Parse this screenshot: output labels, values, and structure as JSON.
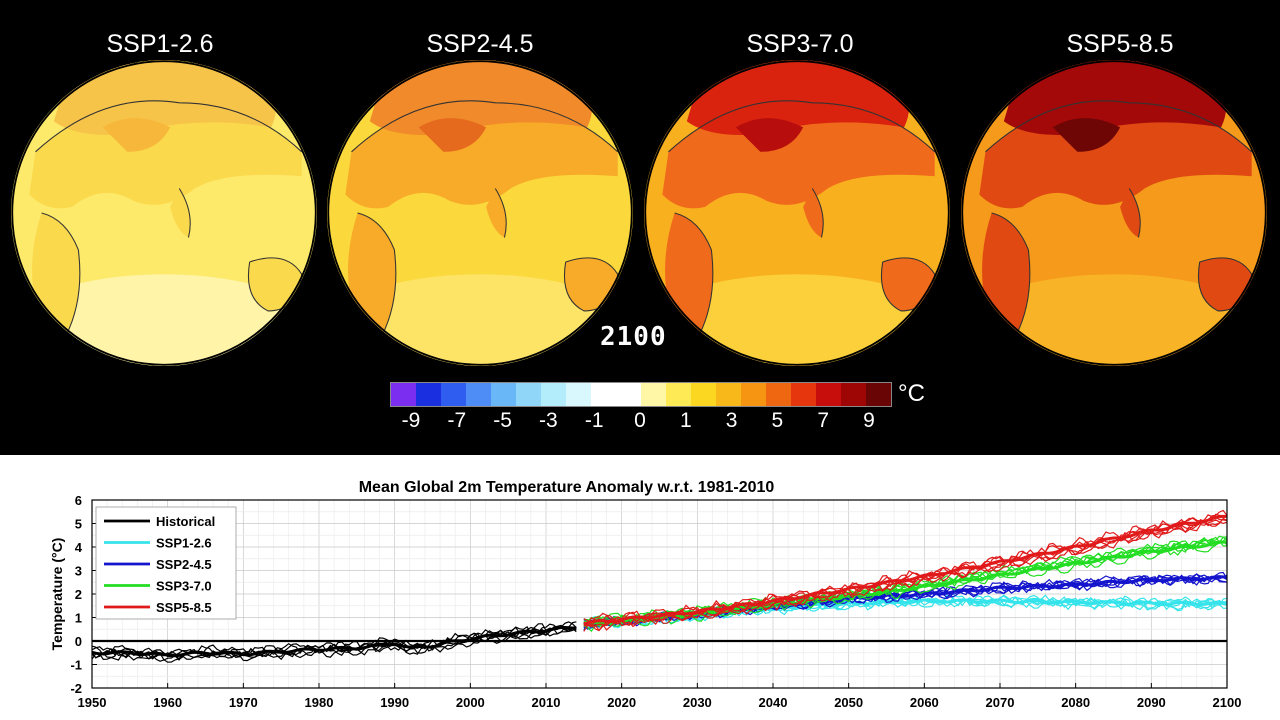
{
  "globes": {
    "year_label": "2100",
    "scenarios": [
      {
        "title": "SSP1-2.6",
        "base": "#fde96a",
        "south": "#fff4a8",
        "land": "#fbd94c",
        "north": "#f7c44a",
        "hot": "#f6b73a"
      },
      {
        "title": "SSP2-4.5",
        "base": "#fbd83c",
        "south": "#fde467",
        "land": "#f8ab28",
        "north": "#f08a2a",
        "hot": "#e66a1d"
      },
      {
        "title": "SSP3-7.0",
        "base": "#f9b01f",
        "south": "#fbd03b",
        "land": "#f06a1b",
        "north": "#d9230f",
        "hot": "#b80d0d"
      },
      {
        "title": "SSP5-8.5",
        "base": "#f59a1a",
        "south": "#f9b326",
        "land": "#e04a12",
        "north": "#a30909",
        "hot": "#6e0606"
      }
    ]
  },
  "colorbar": {
    "unit": "°C",
    "colors": [
      "#7b2ef0",
      "#1a2fe0",
      "#2f5df0",
      "#4d8df5",
      "#6ab7f7",
      "#8fd6f9",
      "#b3ecfb",
      "#d8f8fd",
      "#ffffff",
      "#ffffff",
      "#fff7a6",
      "#fdea55",
      "#fbd721",
      "#f9b81a",
      "#f69512",
      "#f06712",
      "#e5360e",
      "#c80d0d",
      "#9e0606",
      "#6a0505"
    ],
    "tick_labels": [
      "-9",
      "-7",
      "-5",
      "-3",
      "-1",
      "0",
      "1",
      "3",
      "5",
      "7",
      "9"
    ]
  },
  "chart_data": {
    "type": "line",
    "title": "Mean Global 2m Temperature Anomaly w.r.t. 1981-2010",
    "xlabel": "",
    "ylabel": "Temperature (°C)",
    "xlim": [
      1950,
      2100
    ],
    "ylim": [
      -2,
      6
    ],
    "xticks": [
      1950,
      1960,
      1970,
      1980,
      1990,
      2000,
      2010,
      2020,
      2030,
      2040,
      2050,
      2060,
      2070,
      2080,
      2090,
      2100
    ],
    "yticks": [
      -2,
      -1,
      0,
      1,
      2,
      3,
      4,
      5,
      6
    ],
    "grid": true,
    "legend_position": "top-left",
    "series": [
      {
        "name": "Historical",
        "color": "#000000",
        "x": [
          1950,
          1955,
          1960,
          1965,
          1970,
          1975,
          1980,
          1985,
          1990,
          1992,
          1995,
          2000,
          2005,
          2010,
          2014
        ],
        "y": [
          -0.5,
          -0.5,
          -0.6,
          -0.5,
          -0.55,
          -0.45,
          -0.35,
          -0.3,
          -0.1,
          -0.3,
          -0.2,
          0.1,
          0.3,
          0.45,
          0.6
        ],
        "members": 6
      },
      {
        "name": "SSP1-2.6",
        "color": "#35e4ea",
        "x": [
          2015,
          2030,
          2040,
          2050,
          2060,
          2070,
          2080,
          2090,
          2100
        ],
        "y": [
          0.7,
          1.1,
          1.4,
          1.6,
          1.7,
          1.7,
          1.65,
          1.6,
          1.6
        ],
        "members": 6
      },
      {
        "name": "SSP2-4.5",
        "color": "#1414cc",
        "x": [
          2015,
          2030,
          2040,
          2050,
          2060,
          2070,
          2080,
          2090,
          2100
        ],
        "y": [
          0.7,
          1.15,
          1.5,
          1.8,
          2.0,
          2.25,
          2.4,
          2.6,
          2.7
        ],
        "members": 6
      },
      {
        "name": "SSP3-7.0",
        "color": "#22dd22",
        "x": [
          2015,
          2030,
          2040,
          2050,
          2060,
          2070,
          2080,
          2090,
          2100
        ],
        "y": [
          0.7,
          1.15,
          1.55,
          1.9,
          2.3,
          2.8,
          3.3,
          3.8,
          4.2
        ],
        "members": 6
      },
      {
        "name": "SSP5-8.5",
        "color": "#e01a1a",
        "x": [
          2015,
          2030,
          2040,
          2050,
          2060,
          2070,
          2080,
          2090,
          2100
        ],
        "y": [
          0.75,
          1.25,
          1.7,
          2.2,
          2.75,
          3.35,
          4.0,
          4.7,
          5.3
        ],
        "members": 6
      }
    ],
    "zero_line": 0
  }
}
